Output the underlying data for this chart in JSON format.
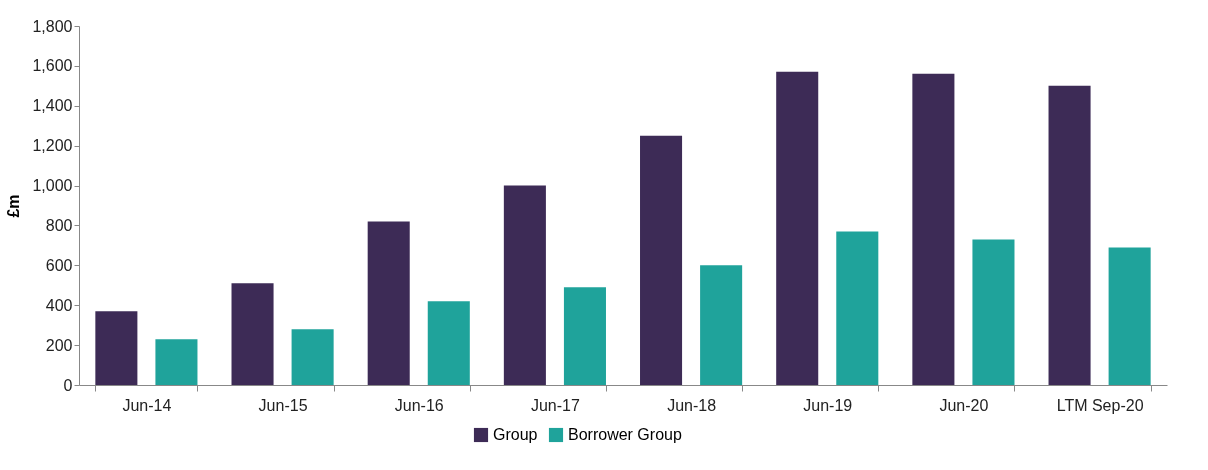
{
  "chart_data": {
    "type": "bar",
    "ylabel": "£m",
    "categories": [
      "Jun-14",
      "Jun-15",
      "Jun-16",
      "Jun-17",
      "Jun-18",
      "Jun-19",
      "Jun-20",
      "LTM Sep-20"
    ],
    "series": [
      {
        "name": "Group",
        "color": "#3d2b56",
        "values": [
          370,
          510,
          820,
          1000,
          1250,
          1570,
          1560,
          1500
        ]
      },
      {
        "name": "Borrower Group",
        "color": "#1fa39b",
        "values": [
          230,
          280,
          420,
          490,
          600,
          770,
          730,
          690
        ]
      }
    ],
    "ylim": [
      0,
      1800
    ],
    "yticks": [
      0,
      200,
      400,
      600,
      800,
      {
        "value": 1000,
        "label": "1,000"
      },
      {
        "value": 1200,
        "label": "1,200"
      },
      {
        "value": 1400,
        "label": "1,400"
      },
      {
        "value": 1600,
        "label": "1,600"
      },
      {
        "value": 1800,
        "label": "1,800"
      }
    ],
    "grid": false,
    "legend": "bottom"
  }
}
